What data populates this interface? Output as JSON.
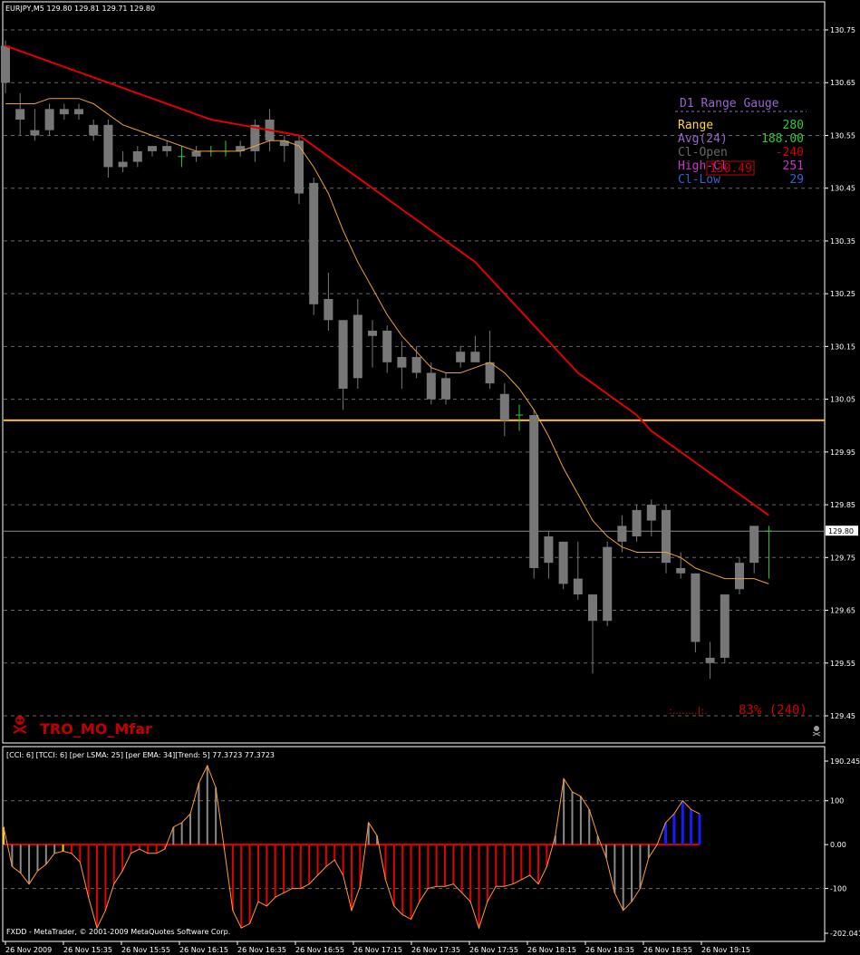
{
  "header": {
    "symbol_line": "EURJPY,M5  129.80 129.81 129.71 129.80"
  },
  "sub_header": {
    "text": "[CCI: 6] [TCCI: 6] [per LSMA: 25] [per EMA: 34][Trend: 5]  77.3723 77.3723"
  },
  "footer": {
    "copyright": "FXDD - MetaTrader, © 2001-2009 MetaQuotes Software Corp."
  },
  "logo": {
    "text": "TRO_MO_Mfar"
  },
  "gauge": {
    "title": "D1 Range Gauge",
    "rows": [
      {
        "label": "Range",
        "value": "280",
        "label_color": "#ffd24d",
        "value_color": "#33cc33"
      },
      {
        "label": "Avg(24)",
        "value": "188.00",
        "label_color": "#9966cc",
        "value_color": "#33cc33"
      },
      {
        "label": "Cl-Open",
        "value": "-240",
        "label_color": "#666666",
        "value_color": "#cc0000"
      },
      {
        "label": "High-Cl",
        "value": "251",
        "label_color": "#cc33cc",
        "value_color": "#cc33cc"
      },
      {
        "label": "Cl-Low",
        "value": "29",
        "label_color": "#3366cc",
        "value_color": "#3366cc"
      }
    ],
    "overlay_value": "130.49",
    "bottom_bar": ":........|:.",
    "percent_text": "83%  (240)"
  },
  "colors": {
    "background": "#000000",
    "candle": "#777777",
    "up_tick": "#33cc33",
    "ma_slow": "#e00000",
    "ma_fast": "#e8a040",
    "level_line": "#ffc000",
    "cci_red": "#e00000",
    "cci_gray": "#8a8a8a",
    "cci_blue": "#1a1aff",
    "cci_yellow": "#ffd000",
    "cci_line": "#ff9a3a"
  },
  "chart_data": {
    "type": "candlestick",
    "price_axis": {
      "ylim": [
        129.4,
        130.8
      ],
      "ticks": [
        "130.75",
        "130.65",
        "130.55",
        "130.45",
        "130.35",
        "130.25",
        "130.15",
        "130.05",
        "129.95",
        "129.85",
        "129.75",
        "129.65",
        "129.55",
        "129.45"
      ],
      "current_price": "129.80",
      "level_price": 130.01
    },
    "time_axis": {
      "labels": [
        "26 Nov 2009",
        "26 Nov 15:35",
        "26 Nov 15:55",
        "26 Nov 16:15",
        "26 Nov 16:35",
        "26 Nov 16:55",
        "26 Nov 17:15",
        "26 Nov 17:35",
        "26 Nov 17:55",
        "26 Nov 18:15",
        "26 Nov 18:35",
        "26 Nov 18:55",
        "26 Nov 19:15"
      ]
    },
    "candles": [
      {
        "o": 130.72,
        "h": 130.73,
        "l": 130.63,
        "c": 130.65
      },
      {
        "o": 130.6,
        "h": 130.63,
        "l": 130.55,
        "c": 130.58
      },
      {
        "o": 130.56,
        "h": 130.6,
        "l": 130.54,
        "c": 130.55
      },
      {
        "o": 130.56,
        "h": 130.61,
        "l": 130.55,
        "c": 130.6
      },
      {
        "o": 130.59,
        "h": 130.61,
        "l": 130.58,
        "c": 130.6
      },
      {
        "o": 130.6,
        "h": 130.61,
        "l": 130.58,
        "c": 130.59
      },
      {
        "o": 130.55,
        "h": 130.58,
        "l": 130.54,
        "c": 130.57
      },
      {
        "o": 130.57,
        "h": 130.58,
        "l": 130.47,
        "c": 130.49
      },
      {
        "o": 130.49,
        "h": 130.52,
        "l": 130.48,
        "c": 130.5
      },
      {
        "o": 130.5,
        "h": 130.53,
        "l": 130.49,
        "c": 130.52
      },
      {
        "o": 130.52,
        "h": 130.53,
        "l": 130.51,
        "c": 130.53
      },
      {
        "o": 130.53,
        "h": 130.54,
        "l": 130.51,
        "c": 130.52
      },
      {
        "o": 130.51,
        "h": 130.53,
        "l": 130.49,
        "c": 130.51
      },
      {
        "o": 130.51,
        "h": 130.53,
        "l": 130.5,
        "c": 130.52
      },
      {
        "o": 130.52,
        "h": 130.53,
        "l": 130.51,
        "c": 130.52
      },
      {
        "o": 130.52,
        "h": 130.54,
        "l": 130.51,
        "c": 130.52
      },
      {
        "o": 130.52,
        "h": 130.54,
        "l": 130.51,
        "c": 130.53
      },
      {
        "o": 130.52,
        "h": 130.58,
        "l": 130.5,
        "c": 130.57
      },
      {
        "o": 130.54,
        "h": 130.6,
        "l": 130.52,
        "c": 130.58
      },
      {
        "o": 130.53,
        "h": 130.55,
        "l": 130.5,
        "c": 130.54
      },
      {
        "o": 130.54,
        "h": 130.55,
        "l": 130.42,
        "c": 130.44
      },
      {
        "o": 130.46,
        "h": 130.47,
        "l": 130.21,
        "c": 130.23
      },
      {
        "o": 130.24,
        "h": 130.29,
        "l": 130.18,
        "c": 130.2
      },
      {
        "o": 130.2,
        "h": 130.2,
        "l": 130.03,
        "c": 130.07
      },
      {
        "o": 130.21,
        "h": 130.24,
        "l": 130.07,
        "c": 130.09
      },
      {
        "o": 130.17,
        "h": 130.2,
        "l": 130.11,
        "c": 130.18
      },
      {
        "o": 130.18,
        "h": 130.19,
        "l": 130.1,
        "c": 130.12
      },
      {
        "o": 130.11,
        "h": 130.16,
        "l": 130.07,
        "c": 130.13
      },
      {
        "o": 130.13,
        "h": 130.15,
        "l": 130.09,
        "c": 130.1
      },
      {
        "o": 130.1,
        "h": 130.12,
        "l": 130.04,
        "c": 130.05
      },
      {
        "o": 130.05,
        "h": 130.1,
        "l": 130.04,
        "c": 130.09
      },
      {
        "o": 130.12,
        "h": 130.15,
        "l": 130.11,
        "c": 130.14
      },
      {
        "o": 130.14,
        "h": 130.17,
        "l": 130.12,
        "c": 130.12
      },
      {
        "o": 130.12,
        "h": 130.18,
        "l": 130.07,
        "c": 130.08
      },
      {
        "o": 130.06,
        "h": 130.08,
        "l": 129.98,
        "c": 130.01
      },
      {
        "o": 130.02,
        "h": 130.04,
        "l": 129.99,
        "c": 130.02
      },
      {
        "o": 130.02,
        "h": 130.03,
        "l": 129.71,
        "c": 129.73
      },
      {
        "o": 129.74,
        "h": 129.8,
        "l": 129.71,
        "c": 129.79
      },
      {
        "o": 129.78,
        "h": 129.78,
        "l": 129.69,
        "c": 129.7
      },
      {
        "o": 129.71,
        "h": 129.78,
        "l": 129.67,
        "c": 129.68
      },
      {
        "o": 129.68,
        "h": 129.68,
        "l": 129.53,
        "c": 129.63
      },
      {
        "o": 129.63,
        "h": 129.78,
        "l": 129.62,
        "c": 129.77
      },
      {
        "o": 129.78,
        "h": 129.83,
        "l": 129.76,
        "c": 129.81
      },
      {
        "o": 129.79,
        "h": 129.85,
        "l": 129.78,
        "c": 129.84
      },
      {
        "o": 129.82,
        "h": 129.86,
        "l": 129.79,
        "c": 129.85
      },
      {
        "o": 129.84,
        "h": 129.85,
        "l": 129.72,
        "c": 129.74
      },
      {
        "o": 129.73,
        "h": 129.76,
        "l": 129.71,
        "c": 129.72
      },
      {
        "o": 129.72,
        "h": 129.72,
        "l": 129.57,
        "c": 129.59
      },
      {
        "o": 129.56,
        "h": 129.59,
        "l": 129.52,
        "c": 129.55
      },
      {
        "o": 129.56,
        "h": 129.68,
        "l": 129.55,
        "c": 129.68
      },
      {
        "o": 129.69,
        "h": 129.75,
        "l": 129.68,
        "c": 129.74
      },
      {
        "o": 129.74,
        "h": 129.81,
        "l": 129.72,
        "c": 129.81
      },
      {
        "o": 129.8,
        "h": 129.81,
        "l": 129.71,
        "c": 129.8
      }
    ],
    "ma_slow": [
      130.72,
      130.71,
      130.7,
      130.69,
      130.68,
      130.67,
      130.66,
      130.65,
      130.64,
      130.63,
      130.62,
      130.61,
      130.6,
      130.59,
      130.58,
      130.575,
      130.57,
      130.565,
      130.56,
      130.555,
      130.55,
      130.53,
      130.51,
      130.49,
      130.47,
      130.45,
      130.43,
      130.41,
      130.39,
      130.37,
      130.35,
      130.33,
      130.31,
      130.28,
      130.25,
      130.22,
      130.19,
      130.16,
      130.13,
      130.1,
      130.08,
      130.06,
      130.04,
      130.02,
      129.99,
      129.97,
      129.95,
      129.93,
      129.91,
      129.89,
      129.87,
      129.85,
      129.83
    ],
    "ma_fast": [
      130.61,
      130.61,
      130.61,
      130.62,
      130.62,
      130.62,
      130.61,
      130.59,
      130.57,
      130.56,
      130.55,
      130.54,
      130.53,
      130.52,
      130.52,
      130.52,
      130.52,
      130.53,
      130.54,
      130.54,
      130.53,
      130.49,
      130.44,
      130.37,
      130.31,
      130.26,
      130.21,
      130.17,
      130.14,
      130.11,
      130.1,
      130.1,
      130.11,
      130.12,
      130.1,
      130.07,
      130.03,
      129.98,
      129.92,
      129.87,
      129.82,
      129.79,
      129.77,
      129.76,
      129.76,
      129.76,
      129.75,
      129.73,
      129.72,
      129.71,
      129.71,
      129.71,
      129.7
    ],
    "indicator": {
      "name": "CCI",
      "ylim": [
        -202.0417,
        190.245
      ],
      "ticks": [
        "190.245",
        "100",
        "0.00",
        "-100",
        "-202.0417"
      ],
      "values": [
        40,
        -50,
        -65,
        -90,
        -60,
        -45,
        -20,
        -15,
        -20,
        -40,
        -120,
        -190,
        -150,
        -90,
        -60,
        -20,
        -10,
        -20,
        -20,
        -10,
        40,
        50,
        70,
        140,
        180,
        130,
        -10,
        -150,
        -190,
        -180,
        -130,
        -140,
        -120,
        -110,
        -100,
        -100,
        -90,
        -70,
        -50,
        -35,
        -70,
        -150,
        -95,
        50,
        20,
        -80,
        -140,
        -160,
        -170,
        -130,
        -100,
        -95,
        -95,
        -90,
        -110,
        -130,
        -190,
        -130,
        -95,
        -95,
        -90,
        -80,
        -70,
        -90,
        -50,
        20,
        150,
        120,
        110,
        80,
        20,
        -30,
        -110,
        -150,
        -130,
        -100,
        -30,
        0,
        50,
        70,
        100,
        80,
        70
      ],
      "colors": [
        "y",
        "g",
        "g",
        "g",
        "g",
        "g",
        "g",
        "y",
        "r",
        "r",
        "r",
        "r",
        "r",
        "r",
        "r",
        "r",
        "r",
        "r",
        "r",
        "r",
        "g",
        "g",
        "g",
        "g",
        "g",
        "g",
        "r",
        "r",
        "r",
        "r",
        "r",
        "r",
        "r",
        "r",
        "r",
        "r",
        "r",
        "r",
        "r",
        "r",
        "r",
        "r",
        "r",
        "g",
        "g",
        "r",
        "r",
        "r",
        "r",
        "r",
        "r",
        "r",
        "r",
        "r",
        "r",
        "r",
        "r",
        "r",
        "r",
        "r",
        "r",
        "r",
        "r",
        "r",
        "r",
        "g",
        "g",
        "g",
        "g",
        "g",
        "g",
        "g",
        "g",
        "g",
        "g",
        "g",
        "g",
        "g",
        "b",
        "b",
        "b",
        "b",
        "b"
      ]
    }
  }
}
